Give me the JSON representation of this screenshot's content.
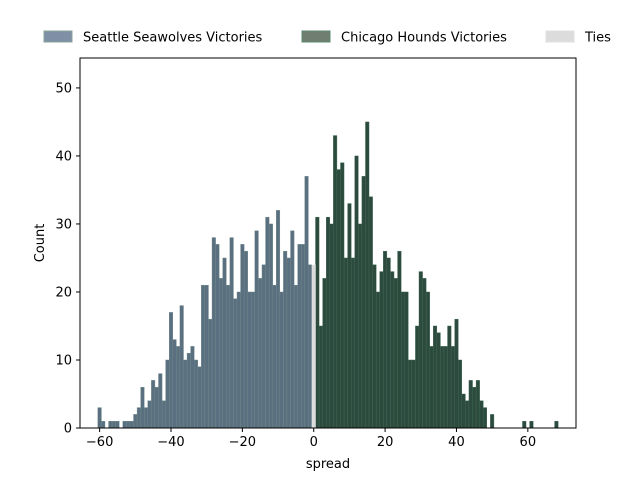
{
  "chart_data": {
    "type": "bar",
    "title": "",
    "xlabel": "spread",
    "ylabel": "Count",
    "xlim": [
      -65.5,
      73.5
    ],
    "ylim": [
      0,
      54.4
    ],
    "xticks": [
      -60,
      -40,
      -20,
      0,
      20,
      40,
      60
    ],
    "yticks": [
      0,
      10,
      20,
      30,
      40,
      50
    ],
    "grid": false,
    "legend_position": "top, outside plot, horizontal",
    "series": [
      {
        "name": "Seattle Seawolves Victories",
        "color": "#5a6f7f",
        "x": [
          -60,
          -59,
          -58,
          -57,
          -56,
          -55,
          -54,
          -53,
          -52,
          -51,
          -50,
          -49,
          -48,
          -47,
          -46,
          -45,
          -44,
          -43,
          -42,
          -41,
          -40,
          -39,
          -38,
          -37,
          -36,
          -35,
          -34,
          -33,
          -32,
          -31,
          -30,
          -29,
          -28,
          -27,
          -26,
          -25,
          -24,
          -23,
          -22,
          -21,
          -20,
          -19,
          -18,
          -17,
          -16,
          -15,
          -14,
          -13,
          -12,
          -11,
          -10,
          -9,
          -8,
          -7,
          -6,
          -5,
          -4,
          -3,
          -2,
          -1
        ],
        "values": [
          3,
          1,
          0,
          1,
          1,
          1,
          0,
          1,
          1,
          1,
          2,
          3,
          6,
          3,
          4,
          7,
          6,
          8,
          4,
          10,
          17,
          13,
          12,
          18,
          10,
          11,
          12,
          10,
          9,
          21,
          21,
          16,
          28,
          27,
          22,
          25,
          21,
          28,
          19,
          20,
          27,
          26,
          20,
          20,
          29,
          22,
          24,
          31,
          30,
          21,
          32,
          20,
          26,
          25,
          29,
          21,
          27,
          27,
          37,
          24
        ]
      },
      {
        "name": "Chicago Hounds Victories",
        "color": "#2d4a3e",
        "x": [
          1,
          2,
          3,
          4,
          5,
          6,
          7,
          8,
          9,
          10,
          11,
          12,
          13,
          14,
          15,
          16,
          17,
          18,
          19,
          20,
          21,
          22,
          23,
          24,
          25,
          26,
          27,
          28,
          29,
          30,
          31,
          32,
          33,
          34,
          35,
          36,
          37,
          38,
          39,
          40,
          41,
          42,
          43,
          44,
          45,
          46,
          47,
          48,
          49,
          50,
          51,
          52,
          53,
          54,
          55,
          56,
          57,
          58,
          59,
          60,
          61,
          62,
          63,
          64,
          65,
          66,
          67,
          68
        ],
        "values": [
          31,
          15,
          22,
          31,
          30,
          43,
          38,
          39,
          25,
          33,
          25,
          40,
          30,
          37,
          45,
          34,
          24,
          20,
          23,
          26,
          25,
          23,
          22,
          26,
          20,
          20,
          10,
          10,
          15,
          23,
          22,
          20,
          12,
          15,
          14,
          12,
          12,
          15,
          12,
          16,
          10,
          5,
          4,
          7,
          6,
          7,
          4,
          3,
          0,
          2,
          0,
          0,
          0,
          0,
          0,
          0,
          0,
          0,
          1,
          0,
          1,
          0,
          0,
          0,
          0,
          0,
          0,
          1
        ]
      },
      {
        "name": "Ties",
        "color": "#dcdcdc",
        "x": [
          0
        ],
        "values": [
          24
        ]
      }
    ]
  }
}
